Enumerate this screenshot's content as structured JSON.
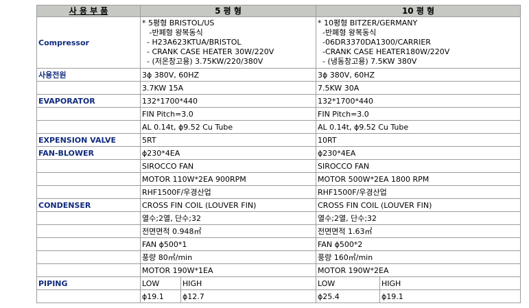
{
  "header": {
    "part": "사 용 부 품",
    "col5": "5  평  형",
    "col10": "10  평  형"
  },
  "compressor": {
    "label": "Compressor",
    "lines5": [
      "* 5평형 BRISTOL/US",
      "   -반폐형 왕복동식",
      "  - H23A623KTUA/BRISTOL",
      "  - CRANK CASE HEATER 30W/220V",
      "  - (저온창고용) 3.75KW/220/380V"
    ],
    "lines10": [
      "* 10평형 BITZER/GERMANY",
      "  -반폐형 왕복동식",
      "  -06DR3370DA1300/CARRIER",
      "  -CRANK CASE HEATER180W/220V",
      "  - (냉동창고용) 7.5KW 380V"
    ]
  },
  "rows": [
    {
      "label": "사용전원",
      "v5": "3ϕ  380V, 60HZ",
      "v10": "3ϕ  380V, 60HZ"
    },
    {
      "label": "",
      "v5": "3.7KW 15A",
      "v10": "7.5KW 30A"
    },
    {
      "label": "EVAPORATOR",
      "v5": "132*1700*440",
      "v10": "132*1700*440"
    },
    {
      "label": "",
      "v5": "FIN Pitch=3.0",
      "v10": "FIN Pitch=3.0"
    },
    {
      "label": "",
      "v5": "AL 0.14t, ϕ9.52 Cu Tube",
      "v10": "AL 0.14t, ϕ9.52 Cu Tube"
    },
    {
      "label": "EXPENSION VALVE",
      "v5": "5RT",
      "v10": "10RT"
    },
    {
      "label": "FAN-BLOWER",
      "v5": "ϕ230*4EA",
      "v10": "ϕ230*4EA"
    },
    {
      "label": "",
      "v5": "SIROCCO FAN",
      "v10": "SIROCCO FAN"
    },
    {
      "label": "",
      "v5": "MOTOR 110W*2EA 900RPM",
      "v10": "MOTOR 500W*2EA 1800 RPM"
    },
    {
      "label": "",
      "v5": "RHF1500F/우경산업",
      "v10": "RHF1500F/우경산업"
    },
    {
      "label": "CONDENSER",
      "v5": "CROSS FIN COIL (LOUVER FIN)",
      "v10": "CROSS FIN COIL (LOUVER FIN)"
    },
    {
      "label": "",
      "v5": "열수;2열, 단수;32",
      "v10": "열수;2열, 단수;32"
    },
    {
      "label": "",
      "v5": "전면면적 0.948㎡",
      "v10": "전면면적 1.63㎡"
    },
    {
      "label": "",
      "v5": "FAN  ϕ500*1",
      "v10": "FAN  ϕ500*2"
    },
    {
      "label": "",
      "v5": "풍량 80㎥/min",
      "v10": "풍량 160㎥/min"
    },
    {
      "label": "",
      "v5": "MOTOR 190W*1EA",
      "v10": "MOTOR 190W*2EA"
    }
  ],
  "piping": {
    "label": "PIPING",
    "low5": "LOW",
    "high5": "HIGH",
    "low10": "LOW",
    "high10": "HIGH",
    "lowv5": "ϕ19.1",
    "highv5": "ϕ12.7",
    "lowv10": "ϕ25.4",
    "highv10": "ϕ19.1"
  }
}
